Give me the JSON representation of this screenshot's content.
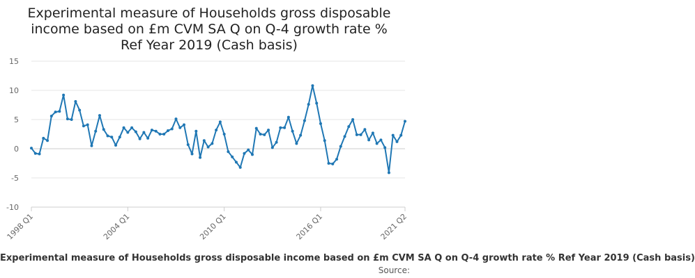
{
  "chart_data": {
    "type": "line",
    "title": "Experimental measure of Households gross disposable income based on £m CVM SA Q on Q-4 growth rate % Ref Year 2019 (Cash basis)",
    "legend": "Experimental measure of Households gross disposable income based on £m CVM SA Q on Q-4 growth rate % Ref Year 2019 (Cash basis)",
    "legend_position": "bottom",
    "source_label": "Source:",
    "xlabel": "",
    "ylabel": "",
    "ylim": [
      -10,
      15
    ],
    "yticks": [
      "-10",
      "-5",
      "0",
      "5",
      "10",
      "15"
    ],
    "xticks": [
      "1998 Q1",
      "2004 Q1",
      "2010 Q1",
      "2016 Q1",
      "2021 Q2"
    ],
    "grid": true,
    "color": "#1f77b4",
    "series": [
      {
        "x_start": "1998 Q1",
        "x_end": "2021 Q2",
        "values": [
          0.1,
          -0.8,
          -0.9,
          1.8,
          1.4,
          5.6,
          6.3,
          6.4,
          9.2,
          5.1,
          5.0,
          8.1,
          6.6,
          3.9,
          4.1,
          0.5,
          3.0,
          5.7,
          3.3,
          2.2,
          2.0,
          0.6,
          2.0,
          3.6,
          2.8,
          3.6,
          2.9,
          1.7,
          2.8,
          1.8,
          3.2,
          3.0,
          2.5,
          2.5,
          3.1,
          3.4,
          5.1,
          3.6,
          4.1,
          0.7,
          -0.9,
          3.0,
          -1.5,
          1.4,
          0.3,
          0.9,
          3.2,
          4.6,
          2.5,
          -0.5,
          -1.4,
          -2.3,
          -3.2,
          -0.8,
          -0.2,
          -1.0,
          3.5,
          2.5,
          2.4,
          3.2,
          0.2,
          1.1,
          3.6,
          3.6,
          5.4,
          3.0,
          0.9,
          2.3,
          4.8,
          7.6,
          10.8,
          7.8,
          4.3,
          1.4,
          -2.5,
          -2.6,
          -1.8,
          0.4,
          2.1,
          3.8,
          5.0,
          2.4,
          2.4,
          3.3,
          1.5,
          2.7,
          0.9,
          1.5,
          0.2,
          -4.1,
          2.3,
          1.2,
          2.3,
          4.7
        ]
      }
    ]
  }
}
